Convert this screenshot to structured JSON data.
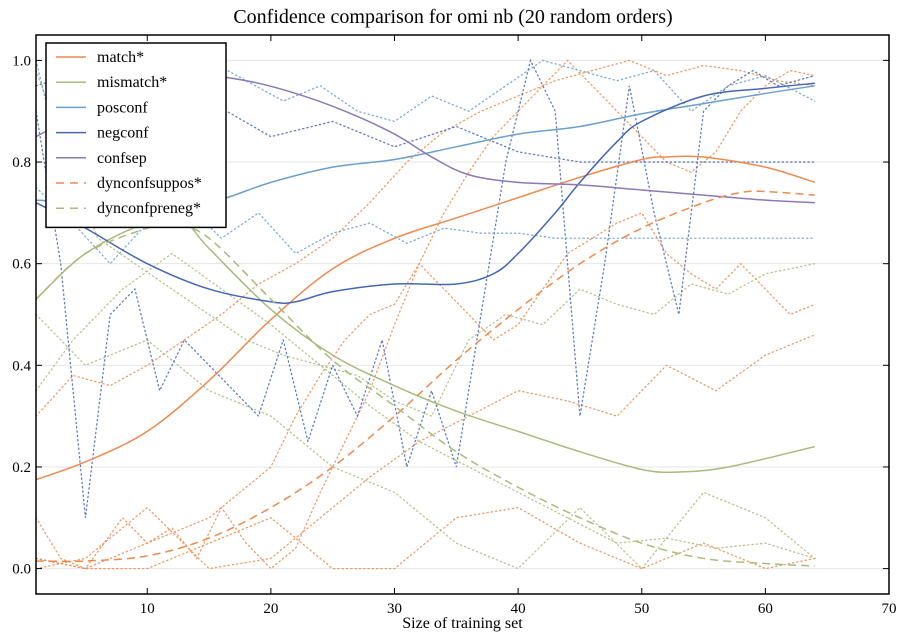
{
  "chart_data": {
    "type": "line",
    "title": "Confidence comparison for omi nb (20 random orders)",
    "xlabel": "Size of training set",
    "ylabel": "",
    "xlim": [
      1,
      70
    ],
    "ylim": [
      -0.05,
      1.05
    ],
    "xticks": [
      10,
      20,
      30,
      40,
      50,
      60,
      70
    ],
    "xtick_labels": [
      "10",
      "20",
      "30",
      "40",
      "50",
      "60",
      "70"
    ],
    "yticks": [
      0.0,
      0.2,
      0.4,
      0.6,
      0.8,
      1.0
    ],
    "ytick_labels": [
      "0.0",
      "0.2",
      "0.4",
      "0.6",
      "0.8",
      "1.0"
    ],
    "grid": "horizontal",
    "legend_position": "top-left",
    "series": [
      {
        "name": "match*",
        "style": "solid",
        "color": "#ee8a4e",
        "x": [
          1,
          5,
          10,
          15,
          20,
          25,
          30,
          35,
          40,
          45,
          50,
          52,
          55,
          60,
          64
        ],
        "y": [
          0.175,
          0.21,
          0.27,
          0.37,
          0.49,
          0.59,
          0.65,
          0.69,
          0.73,
          0.77,
          0.805,
          0.81,
          0.81,
          0.79,
          0.76
        ]
      },
      {
        "name": "mismatch*",
        "style": "solid",
        "color": "#a9bb7c",
        "x": [
          1,
          5,
          10,
          13,
          15,
          20,
          25,
          30,
          35,
          40,
          45,
          50,
          53,
          57,
          64
        ],
        "y": [
          0.53,
          0.62,
          0.68,
          0.68,
          0.63,
          0.51,
          0.42,
          0.36,
          0.31,
          0.27,
          0.23,
          0.195,
          0.19,
          0.2,
          0.24
        ]
      },
      {
        "name": "posconf",
        "style": "solid",
        "color": "#6a9fce",
        "x": [
          1,
          5,
          10,
          15,
          20,
          25,
          30,
          35,
          40,
          45,
          50,
          55,
          60,
          64
        ],
        "y": [
          0.725,
          0.72,
          0.71,
          0.72,
          0.76,
          0.79,
          0.805,
          0.83,
          0.855,
          0.87,
          0.895,
          0.915,
          0.935,
          0.95
        ]
      },
      {
        "name": "negconf",
        "style": "solid",
        "color": "#4466b4",
        "x": [
          1,
          5,
          10,
          15,
          20,
          22,
          25,
          30,
          35,
          38,
          40,
          43,
          45,
          48,
          50,
          55,
          60,
          64
        ],
        "y": [
          0.72,
          0.67,
          0.6,
          0.55,
          0.525,
          0.525,
          0.545,
          0.56,
          0.56,
          0.58,
          0.62,
          0.7,
          0.76,
          0.84,
          0.88,
          0.93,
          0.945,
          0.955
        ]
      },
      {
        "name": "confsep",
        "style": "solid",
        "color": "#8a79b8",
        "x": [
          1,
          5,
          10,
          14,
          18,
          22,
          26,
          30,
          33,
          36,
          40,
          45,
          50,
          55,
          60,
          64
        ],
        "y": [
          0.85,
          0.9,
          0.95,
          0.97,
          0.96,
          0.935,
          0.9,
          0.855,
          0.81,
          0.775,
          0.76,
          0.755,
          0.745,
          0.735,
          0.725,
          0.72
        ]
      },
      {
        "name": "dynconfsuppos*",
        "style": "dashed",
        "color": "#ee8a4e",
        "x": [
          1,
          5,
          10,
          15,
          20,
          25,
          30,
          35,
          40,
          45,
          50,
          55,
          58,
          60,
          64
        ],
        "y": [
          0.015,
          0.015,
          0.025,
          0.06,
          0.12,
          0.2,
          0.3,
          0.41,
          0.51,
          0.6,
          0.67,
          0.72,
          0.74,
          0.742,
          0.735
        ]
      },
      {
        "name": "dynconfpreneg*",
        "style": "dashed",
        "color": "#a9bb7c",
        "x": [
          1,
          5,
          10,
          12,
          15,
          20,
          25,
          30,
          35,
          40,
          45,
          50,
          55,
          60,
          64
        ],
        "y": [
          0.53,
          0.62,
          0.67,
          0.68,
          0.65,
          0.53,
          0.41,
          0.32,
          0.23,
          0.16,
          0.1,
          0.05,
          0.02,
          0.01,
          0.005
        ]
      }
    ],
    "random_order_traces": [
      {
        "color": "#ee8a4e",
        "x": [
          1,
          3,
          5,
          8,
          10,
          12,
          14,
          16,
          18,
          20,
          22,
          24,
          26,
          28,
          30,
          32,
          34,
          36,
          38,
          40,
          42,
          44,
          46,
          48,
          50,
          52,
          54,
          56,
          58,
          60,
          62,
          64
        ],
        "y": [
          0.1,
          0.02,
          0.0,
          0.1,
          0.05,
          0.08,
          0.02,
          0.12,
          0.05,
          0.0,
          0.04,
          0.15,
          0.25,
          0.35,
          0.48,
          0.6,
          0.7,
          0.78,
          0.85,
          0.9,
          0.95,
          1.0,
          0.95,
          0.9,
          0.85,
          0.8,
          0.78,
          0.82,
          0.9,
          0.95,
          0.98,
          0.97
        ]
      },
      {
        "color": "#ee8a4e",
        "x": [
          1,
          4,
          7,
          10,
          13,
          16,
          19,
          22,
          25,
          28,
          31,
          34,
          37,
          40,
          43,
          46,
          49,
          52,
          55,
          58,
          61,
          64
        ],
        "y": [
          0.3,
          0.38,
          0.36,
          0.4,
          0.45,
          0.5,
          0.56,
          0.6,
          0.65,
          0.72,
          0.8,
          0.86,
          0.9,
          0.93,
          0.96,
          0.98,
          1.0,
          0.97,
          0.99,
          0.98,
          0.96,
          0.95
        ]
      },
      {
        "color": "#ee8a4e",
        "x": [
          1,
          5,
          10,
          15,
          20,
          22,
          24,
          26,
          28,
          30,
          32,
          34,
          36,
          38,
          40,
          42,
          44,
          46,
          48,
          50,
          52,
          54,
          56,
          58,
          60,
          62,
          64
        ],
        "y": [
          0.02,
          0.0,
          0.05,
          0.1,
          0.2,
          0.3,
          0.38,
          0.45,
          0.5,
          0.52,
          0.6,
          0.55,
          0.5,
          0.45,
          0.48,
          0.55,
          0.62,
          0.65,
          0.68,
          0.7,
          0.62,
          0.58,
          0.55,
          0.6,
          0.55,
          0.5,
          0.52
        ]
      },
      {
        "color": "#ee8a4e",
        "x": [
          1,
          5,
          10,
          15,
          20,
          24,
          28,
          32,
          36,
          40,
          44,
          48,
          52,
          56,
          60,
          64
        ],
        "y": [
          0.0,
          0.02,
          0.12,
          0.0,
          0.02,
          0.1,
          0.18,
          0.25,
          0.3,
          0.35,
          0.33,
          0.3,
          0.4,
          0.35,
          0.42,
          0.46
        ]
      },
      {
        "color": "#ee8a4e",
        "x": [
          1,
          5,
          10,
          15,
          20,
          25,
          30,
          35,
          40,
          45,
          50,
          55,
          60,
          64
        ],
        "y": [
          0.02,
          0.0,
          0.0,
          0.05,
          0.1,
          0.0,
          0.0,
          0.1,
          0.12,
          0.05,
          0.0,
          0.05,
          0.0,
          0.02
        ]
      },
      {
        "color": "#a9bb7c",
        "x": [
          1,
          3,
          6,
          9,
          12,
          15,
          18,
          21,
          24,
          27,
          30,
          33,
          36,
          39,
          42,
          45,
          48,
          51,
          54,
          57,
          60,
          64
        ],
        "y": [
          0.98,
          0.85,
          0.65,
          0.6,
          0.55,
          0.5,
          0.45,
          0.42,
          0.4,
          0.38,
          0.33,
          0.3,
          0.45,
          0.5,
          0.48,
          0.55,
          0.52,
          0.5,
          0.56,
          0.54,
          0.58,
          0.6
        ]
      },
      {
        "color": "#a9bb7c",
        "x": [
          1,
          4,
          8,
          12,
          16,
          20,
          24,
          28,
          32,
          36,
          40,
          44,
          48,
          52,
          56,
          60,
          64
        ],
        "y": [
          0.35,
          0.45,
          0.55,
          0.62,
          0.55,
          0.48,
          0.4,
          0.32,
          0.25,
          0.2,
          0.15,
          0.1,
          0.05,
          0.06,
          0.04,
          0.05,
          0.02
        ]
      },
      {
        "color": "#a9bb7c",
        "x": [
          1,
          5,
          10,
          15,
          20,
          25,
          30,
          35,
          40,
          45,
          50,
          55,
          60,
          64
        ],
        "y": [
          0.5,
          0.4,
          0.45,
          0.35,
          0.3,
          0.2,
          0.15,
          0.05,
          0.0,
          0.12,
          0.0,
          0.15,
          0.1,
          0.02
        ]
      },
      {
        "color": "#4466b4",
        "x": [
          1,
          3,
          5,
          7,
          9,
          11,
          13,
          15,
          17,
          19,
          21,
          23,
          25,
          27,
          29,
          31,
          33,
          35,
          37,
          39,
          41,
          43,
          45,
          47,
          49,
          51,
          53,
          55,
          57,
          59,
          61,
          64
        ],
        "y": [
          0.9,
          0.6,
          0.1,
          0.5,
          0.55,
          0.35,
          0.45,
          0.4,
          0.35,
          0.3,
          0.45,
          0.25,
          0.4,
          0.3,
          0.45,
          0.2,
          0.35,
          0.2,
          0.5,
          0.8,
          1.0,
          0.9,
          0.3,
          0.6,
          0.95,
          0.7,
          0.5,
          0.9,
          0.95,
          0.98,
          0.95,
          0.97
        ]
      },
      {
        "color": "#4466b4",
        "x": [
          1,
          5,
          10,
          15,
          20,
          25,
          30,
          35,
          40,
          45,
          50,
          55,
          60,
          64
        ],
        "y": [
          0.95,
          0.98,
          0.9,
          0.92,
          0.85,
          0.88,
          0.83,
          0.87,
          0.82,
          0.8,
          0.8,
          0.8,
          0.8,
          0.8
        ]
      },
      {
        "color": "#6a9fce",
        "x": [
          1,
          4,
          7,
          10,
          13,
          16,
          19,
          22,
          25,
          28,
          31,
          34,
          37,
          40,
          43,
          46,
          49,
          52,
          55,
          58,
          61,
          64
        ],
        "y": [
          0.75,
          0.68,
          0.6,
          0.68,
          0.72,
          0.65,
          0.7,
          0.62,
          0.66,
          0.68,
          0.64,
          0.67,
          0.66,
          0.66,
          0.65,
          0.65,
          0.65,
          0.65,
          0.65,
          0.65,
          0.65,
          0.65
        ]
      },
      {
        "color": "#6a9fce",
        "x": [
          1,
          3,
          6,
          9,
          12,
          15,
          18,
          21,
          24,
          27,
          30,
          33,
          36,
          39,
          42,
          45,
          48,
          51,
          54,
          57,
          60,
          64
        ],
        "y": [
          1.0,
          0.8,
          0.9,
          0.85,
          0.98,
          1.0,
          0.96,
          0.92,
          0.95,
          0.9,
          0.88,
          0.93,
          0.9,
          0.95,
          1.0,
          0.98,
          0.96,
          0.98,
          0.9,
          0.95,
          0.97,
          0.92
        ]
      }
    ]
  }
}
